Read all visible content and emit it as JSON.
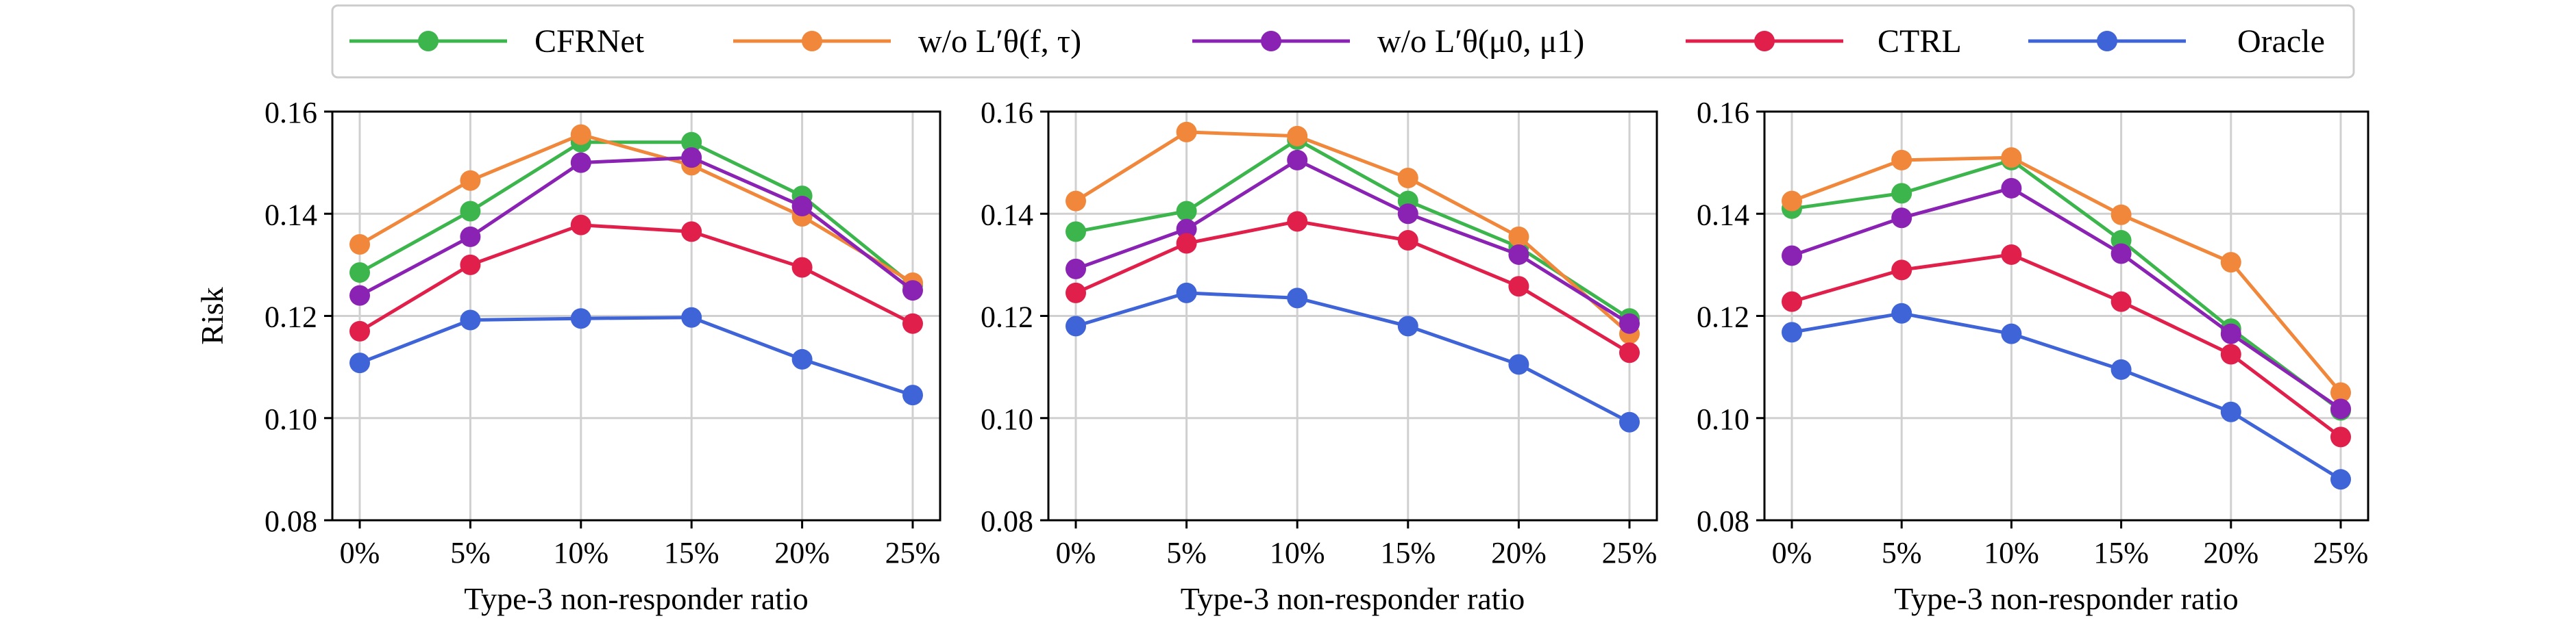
{
  "legend": {
    "entries": [
      {
        "name": "CFRNet",
        "color": "#3cb64c"
      },
      {
        "name": "w/o L′θ(f, τ)",
        "color": "#f0873a"
      },
      {
        "name": "w/o L′θ(μ0, μ1)",
        "color": "#8a22b3"
      },
      {
        "name": "CTRL",
        "color": "#e11f4b"
      },
      {
        "name": "Oracle",
        "color": "#3f64d8"
      }
    ]
  },
  "chart_data": [
    {
      "type": "line",
      "title": "",
      "xlabel": "Type-3 non-responder ratio",
      "ylabel": "Risk",
      "categories": [
        "0%",
        "5%",
        "10%",
        "15%",
        "20%",
        "25%"
      ],
      "ylim": [
        0.08,
        0.16
      ],
      "yticks": [
        "0.08",
        "0.10",
        "0.12",
        "0.14",
        "0.16"
      ],
      "grid": true,
      "series": [
        {
          "name": "CFRNet",
          "values": [
            0.1285,
            0.1405,
            0.154,
            0.154,
            0.1435,
            0.126
          ]
        },
        {
          "name": "w/o L′θ(f, τ)",
          "values": [
            0.134,
            0.1465,
            0.1555,
            0.1495,
            0.1395,
            0.1265
          ]
        },
        {
          "name": "w/o L′θ(μ0, μ1)",
          "values": [
            0.124,
            0.1355,
            0.15,
            0.151,
            0.1415,
            0.125
          ]
        },
        {
          "name": "CTRL",
          "values": [
            0.117,
            0.13,
            0.1378,
            0.1365,
            0.1295,
            0.1185
          ]
        },
        {
          "name": "Oracle",
          "values": [
            0.1108,
            0.1192,
            0.1195,
            0.1197,
            0.1115,
            0.1045
          ]
        }
      ]
    },
    {
      "type": "line",
      "title": "",
      "xlabel": "Type-3 non-responder ratio",
      "ylabel": "",
      "categories": [
        "0%",
        "5%",
        "10%",
        "15%",
        "20%",
        "25%"
      ],
      "ylim": [
        0.08,
        0.16
      ],
      "yticks": [
        "0.08",
        "0.10",
        "0.12",
        "0.14",
        "0.16"
      ],
      "grid": true,
      "series": [
        {
          "name": "CFRNet",
          "values": [
            0.1365,
            0.1405,
            0.1545,
            0.1425,
            0.1335,
            0.1195
          ]
        },
        {
          "name": "w/o L′θ(f, τ)",
          "values": [
            0.1425,
            0.156,
            0.1552,
            0.147,
            0.1355,
            0.1165
          ]
        },
        {
          "name": "w/o L′θ(μ0, μ1)",
          "values": [
            0.1292,
            0.137,
            0.1505,
            0.14,
            0.132,
            0.1185
          ]
        },
        {
          "name": "CTRL",
          "values": [
            0.1245,
            0.1342,
            0.1385,
            0.1348,
            0.1258,
            0.1128
          ]
        },
        {
          "name": "Oracle",
          "values": [
            0.118,
            0.1245,
            0.1235,
            0.118,
            0.1105,
            0.0992
          ]
        }
      ]
    },
    {
      "type": "line",
      "title": "",
      "xlabel": "Type-3 non-responder ratio",
      "ylabel": "",
      "categories": [
        "0%",
        "5%",
        "10%",
        "15%",
        "20%",
        "25%"
      ],
      "ylim": [
        0.08,
        0.16
      ],
      "yticks": [
        "0.08",
        "0.10",
        "0.12",
        "0.14",
        "0.16"
      ],
      "grid": true,
      "series": [
        {
          "name": "CFRNet",
          "values": [
            0.141,
            0.144,
            0.1505,
            0.1348,
            0.1175,
            0.1015
          ]
        },
        {
          "name": "w/o L′θ(f, τ)",
          "values": [
            0.1425,
            0.1505,
            0.151,
            0.1398,
            0.1305,
            0.105
          ]
        },
        {
          "name": "w/o L′θ(μ0, μ1)",
          "values": [
            0.1318,
            0.1392,
            0.145,
            0.1322,
            0.1165,
            0.1018
          ]
        },
        {
          "name": "CTRL",
          "values": [
            0.1228,
            0.129,
            0.132,
            0.1228,
            0.1125,
            0.0963
          ]
        },
        {
          "name": "Oracle",
          "values": [
            0.1168,
            0.1205,
            0.1165,
            0.1095,
            0.1012,
            0.088
          ]
        }
      ]
    }
  ]
}
